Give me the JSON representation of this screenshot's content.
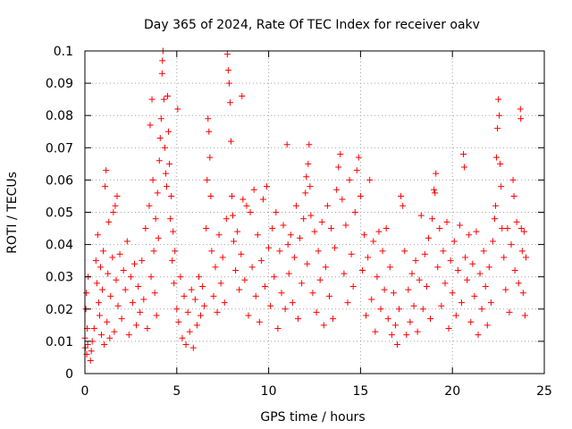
{
  "chart_data": {
    "type": "scatter",
    "title": "Day 365 of 2024, Rate Of TEC Index for receiver oakv",
    "xlabel": "GPS time / hours",
    "ylabel": "ROTI / TECUs",
    "xlim": [
      0,
      25
    ],
    "ylim": [
      0,
      0.1
    ],
    "xticks": [
      0,
      5,
      10,
      15,
      20,
      25
    ],
    "xtick_labels": [
      "0",
      "5",
      "10",
      "15",
      "20",
      "25"
    ],
    "yticks": [
      0,
      0.01,
      0.02,
      0.03,
      0.04,
      0.05,
      0.06,
      0.07,
      0.08,
      0.09,
      0.1
    ],
    "ytick_labels": [
      "0",
      "0.01",
      "0.02",
      "0.03",
      "0.04",
      "0.05",
      "0.06",
      "0.07",
      "0.08",
      "0.09",
      "0.1"
    ],
    "grid": true,
    "marker": "+",
    "series": [
      {
        "name": "ROTI",
        "color": "#ff0000",
        "points": [
          [
            0.0,
            0.011
          ],
          [
            0.02,
            0.008
          ],
          [
            0.05,
            0.02
          ],
          [
            0.08,
            0.025
          ],
          [
            0.1,
            0.006
          ],
          [
            0.12,
            0.014
          ],
          [
            0.15,
            0.009
          ],
          [
            0.18,
            0.03
          ],
          [
            0.3,
            0.004
          ],
          [
            0.35,
            0.007
          ],
          [
            0.4,
            0.01
          ],
          [
            0.5,
            0.014
          ],
          [
            0.6,
            0.035
          ],
          [
            0.65,
            0.028
          ],
          [
            0.7,
            0.043
          ],
          [
            0.75,
            0.022
          ],
          [
            0.8,
            0.018
          ],
          [
            0.85,
            0.033
          ],
          [
            0.9,
            0.012
          ],
          [
            0.95,
            0.026
          ],
          [
            1.0,
            0.038
          ],
          [
            1.05,
            0.009
          ],
          [
            1.1,
            0.058
          ],
          [
            1.15,
            0.063
          ],
          [
            1.2,
            0.016
          ],
          [
            1.25,
            0.031
          ],
          [
            1.3,
            0.047
          ],
          [
            1.35,
            0.011
          ],
          [
            1.4,
            0.024
          ],
          [
            1.5,
            0.036
          ],
          [
            1.55,
            0.05
          ],
          [
            1.6,
            0.013
          ],
          [
            1.65,
            0.052
          ],
          [
            1.7,
            0.029
          ],
          [
            1.75,
            0.055
          ],
          [
            1.8,
            0.021
          ],
          [
            1.9,
            0.037
          ],
          [
            2.0,
            0.017
          ],
          [
            2.1,
            0.032
          ],
          [
            2.2,
            0.026
          ],
          [
            2.3,
            0.041
          ],
          [
            2.4,
            0.012
          ],
          [
            2.5,
            0.03
          ],
          [
            2.6,
            0.022
          ],
          [
            2.7,
            0.034
          ],
          [
            2.8,
            0.015
          ],
          [
            2.9,
            0.027
          ],
          [
            3.0,
            0.019
          ],
          [
            3.1,
            0.035
          ],
          [
            3.2,
            0.023
          ],
          [
            3.3,
            0.045
          ],
          [
            3.4,
            0.014
          ],
          [
            3.5,
            0.052
          ],
          [
            3.55,
            0.077
          ],
          [
            3.6,
            0.03
          ],
          [
            3.65,
            0.085
          ],
          [
            3.7,
            0.06
          ],
          [
            3.75,
            0.038
          ],
          [
            3.8,
            0.025
          ],
          [
            3.85,
            0.048
          ],
          [
            3.9,
            0.018
          ],
          [
            3.95,
            0.056
          ],
          [
            4.0,
            0.042
          ],
          [
            4.05,
            0.066
          ],
          [
            4.1,
            0.073
          ],
          [
            4.15,
            0.079
          ],
          [
            4.2,
            0.093
          ],
          [
            4.22,
            0.097
          ],
          [
            4.25,
            0.1
          ],
          [
            4.3,
            0.085
          ],
          [
            4.35,
            0.07
          ],
          [
            4.4,
            0.062
          ],
          [
            4.45,
            0.058
          ],
          [
            4.5,
            0.086
          ],
          [
            4.55,
            0.075
          ],
          [
            4.6,
            0.065
          ],
          [
            4.65,
            0.048
          ],
          [
            4.7,
            0.055
          ],
          [
            4.75,
            0.035
          ],
          [
            4.8,
            0.044
          ],
          [
            4.85,
            0.028
          ],
          [
            4.9,
            0.038
          ],
          [
            5.0,
            0.02
          ],
          [
            5.05,
            0.082
          ],
          [
            5.1,
            0.016
          ],
          [
            5.2,
            0.03
          ],
          [
            5.3,
            0.011
          ],
          [
            5.4,
            0.024
          ],
          [
            5.5,
            0.009
          ],
          [
            5.6,
            0.019
          ],
          [
            5.7,
            0.013
          ],
          [
            5.8,
            0.026
          ],
          [
            5.9,
            0.008
          ],
          [
            6.0,
            0.023
          ],
          [
            6.1,
            0.015
          ],
          [
            6.2,
            0.03
          ],
          [
            6.3,
            0.018
          ],
          [
            6.4,
            0.027
          ],
          [
            6.5,
            0.021
          ],
          [
            6.6,
            0.045
          ],
          [
            6.65,
            0.06
          ],
          [
            6.7,
            0.079
          ],
          [
            6.75,
            0.075
          ],
          [
            6.8,
            0.067
          ],
          [
            6.85,
            0.055
          ],
          [
            6.9,
            0.038
          ],
          [
            7.0,
            0.024
          ],
          [
            7.1,
            0.033
          ],
          [
            7.2,
            0.019
          ],
          [
            7.3,
            0.043
          ],
          [
            7.4,
            0.028
          ],
          [
            7.5,
            0.036
          ],
          [
            7.6,
            0.022
          ],
          [
            7.7,
            0.048
          ],
          [
            7.75,
            0.099
          ],
          [
            7.8,
            0.094
          ],
          [
            7.85,
            0.09
          ],
          [
            7.9,
            0.084
          ],
          [
            7.95,
            0.072
          ],
          [
            8.0,
            0.055
          ],
          [
            8.05,
            0.049
          ],
          [
            8.1,
            0.041
          ],
          [
            8.2,
            0.032
          ],
          [
            8.3,
            0.044
          ],
          [
            8.4,
            0.026
          ],
          [
            8.5,
            0.037
          ],
          [
            8.55,
            0.086
          ],
          [
            8.6,
            0.054
          ],
          [
            8.7,
            0.029
          ],
          [
            8.8,
            0.052
          ],
          [
            8.9,
            0.018
          ],
          [
            9.0,
            0.05
          ],
          [
            9.1,
            0.033
          ],
          [
            9.2,
            0.057
          ],
          [
            9.3,
            0.024
          ],
          [
            9.4,
            0.043
          ],
          [
            9.5,
            0.016
          ],
          [
            9.6,
            0.035
          ],
          [
            9.7,
            0.054
          ],
          [
            9.8,
            0.027
          ],
          [
            9.9,
            0.058
          ],
          [
            10.0,
            0.039
          ],
          [
            10.1,
            0.021
          ],
          [
            10.2,
            0.045
          ],
          [
            10.3,
            0.03
          ],
          [
            10.4,
            0.05
          ],
          [
            10.5,
            0.014
          ],
          [
            10.6,
            0.038
          ],
          [
            10.7,
            0.025
          ],
          [
            10.8,
            0.046
          ],
          [
            10.9,
            0.02
          ],
          [
            11.0,
            0.071
          ],
          [
            11.05,
            0.04
          ],
          [
            11.1,
            0.031
          ],
          [
            11.2,
            0.043
          ],
          [
            11.3,
            0.022
          ],
          [
            11.4,
            0.036
          ],
          [
            11.5,
            0.052
          ],
          [
            11.6,
            0.017
          ],
          [
            11.7,
            0.042
          ],
          [
            11.8,
            0.028
          ],
          [
            11.9,
            0.048
          ],
          [
            12.0,
            0.056
          ],
          [
            12.05,
            0.061
          ],
          [
            12.1,
            0.034
          ],
          [
            12.15,
            0.065
          ],
          [
            12.2,
            0.071
          ],
          [
            12.25,
            0.058
          ],
          [
            12.3,
            0.049
          ],
          [
            12.4,
            0.025
          ],
          [
            12.5,
            0.044
          ],
          [
            12.6,
            0.019
          ],
          [
            12.7,
            0.038
          ],
          [
            12.8,
            0.029
          ],
          [
            12.9,
            0.047
          ],
          [
            13.0,
            0.015
          ],
          [
            13.1,
            0.033
          ],
          [
            13.2,
            0.052
          ],
          [
            13.3,
            0.024
          ],
          [
            13.4,
            0.045
          ],
          [
            13.5,
            0.017
          ],
          [
            13.6,
            0.039
          ],
          [
            13.7,
            0.057
          ],
          [
            13.8,
            0.064
          ],
          [
            13.9,
            0.068
          ],
          [
            14.0,
            0.054
          ],
          [
            14.1,
            0.031
          ],
          [
            14.2,
            0.046
          ],
          [
            14.3,
            0.022
          ],
          [
            14.4,
            0.06
          ],
          [
            14.5,
            0.037
          ],
          [
            14.6,
            0.027
          ],
          [
            14.7,
            0.05
          ],
          [
            14.8,
            0.063
          ],
          [
            14.9,
            0.067
          ],
          [
            15.0,
            0.055
          ],
          [
            15.1,
            0.032
          ],
          [
            15.2,
            0.043
          ],
          [
            15.3,
            0.018
          ],
          [
            15.4,
            0.036
          ],
          [
            15.5,
            0.06
          ],
          [
            15.6,
            0.023
          ],
          [
            15.7,
            0.041
          ],
          [
            15.8,
            0.013
          ],
          [
            15.9,
            0.03
          ],
          [
            16.0,
            0.044
          ],
          [
            16.1,
            0.02
          ],
          [
            16.2,
            0.038
          ],
          [
            16.3,
            0.026
          ],
          [
            16.4,
            0.045
          ],
          [
            16.5,
            0.017
          ],
          [
            16.6,
            0.033
          ],
          [
            16.7,
            0.012
          ],
          [
            16.8,
            0.025
          ],
          [
            16.9,
            0.015
          ],
          [
            17.0,
            0.009
          ],
          [
            17.1,
            0.02
          ],
          [
            17.2,
            0.055
          ],
          [
            17.3,
            0.052
          ],
          [
            17.4,
            0.038
          ],
          [
            17.5,
            0.012
          ],
          [
            17.6,
            0.026
          ],
          [
            17.7,
            0.016
          ],
          [
            17.8,
            0.031
          ],
          [
            17.9,
            0.021
          ],
          [
            18.0,
            0.035
          ],
          [
            18.1,
            0.013
          ],
          [
            18.2,
            0.029
          ],
          [
            18.3,
            0.049
          ],
          [
            18.4,
            0.02
          ],
          [
            18.5,
            0.037
          ],
          [
            18.6,
            0.027
          ],
          [
            18.7,
            0.042
          ],
          [
            18.8,
            0.017
          ],
          [
            18.9,
            0.048
          ],
          [
            19.0,
            0.057
          ],
          [
            19.05,
            0.056
          ],
          [
            19.1,
            0.062
          ],
          [
            19.2,
            0.033
          ],
          [
            19.3,
            0.045
          ],
          [
            19.4,
            0.021
          ],
          [
            19.5,
            0.038
          ],
          [
            19.6,
            0.028
          ],
          [
            19.7,
            0.047
          ],
          [
            19.8,
            0.014
          ],
          [
            19.9,
            0.035
          ],
          [
            20.0,
            0.025
          ],
          [
            20.1,
            0.041
          ],
          [
            20.2,
            0.018
          ],
          [
            20.3,
            0.032
          ],
          [
            20.4,
            0.046
          ],
          [
            20.5,
            0.022
          ],
          [
            20.6,
            0.068
          ],
          [
            20.65,
            0.064
          ],
          [
            20.7,
            0.036
          ],
          [
            20.8,
            0.029
          ],
          [
            20.9,
            0.043
          ],
          [
            21.0,
            0.016
          ],
          [
            21.1,
            0.034
          ],
          [
            21.2,
            0.024
          ],
          [
            21.3,
            0.044
          ],
          [
            21.4,
            0.012
          ],
          [
            21.5,
            0.031
          ],
          [
            21.6,
            0.02
          ],
          [
            21.7,
            0.038
          ],
          [
            21.8,
            0.027
          ],
          [
            21.9,
            0.015
          ],
          [
            22.0,
            0.033
          ],
          [
            22.1,
            0.022
          ],
          [
            22.2,
            0.041
          ],
          [
            22.3,
            0.048
          ],
          [
            22.35,
            0.052
          ],
          [
            22.4,
            0.067
          ],
          [
            22.45,
            0.076
          ],
          [
            22.5,
            0.085
          ],
          [
            22.55,
            0.08
          ],
          [
            22.6,
            0.065
          ],
          [
            22.65,
            0.058
          ],
          [
            22.7,
            0.045
          ],
          [
            22.8,
            0.036
          ],
          [
            22.9,
            0.026
          ],
          [
            23.0,
            0.045
          ],
          [
            23.1,
            0.019
          ],
          [
            23.2,
            0.04
          ],
          [
            23.3,
            0.06
          ],
          [
            23.35,
            0.055
          ],
          [
            23.4,
            0.032
          ],
          [
            23.5,
            0.047
          ],
          [
            23.6,
            0.028
          ],
          [
            23.7,
            0.082
          ],
          [
            23.72,
            0.079
          ],
          [
            23.75,
            0.045
          ],
          [
            23.8,
            0.038
          ],
          [
            23.85,
            0.025
          ],
          [
            23.9,
            0.044
          ],
          [
            23.95,
            0.018
          ],
          [
            24.0,
            0.036
          ]
        ]
      }
    ]
  }
}
